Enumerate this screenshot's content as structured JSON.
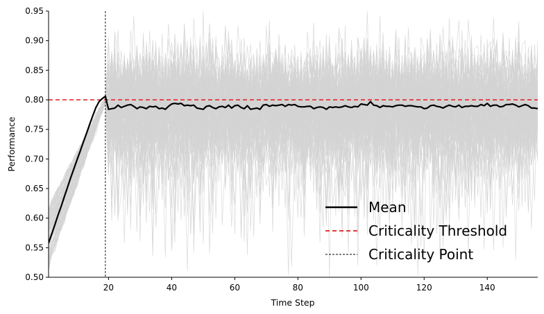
{
  "chart_data": {
    "type": "line",
    "title": "",
    "xlabel": "Time Step",
    "ylabel": "Performance",
    "xlim": [
      1,
      156
    ],
    "ylim": [
      0.5,
      0.95
    ],
    "xticks": [
      20,
      40,
      60,
      80,
      100,
      120,
      140
    ],
    "xtick_labels": [
      "20",
      "40",
      "60",
      "80",
      "100",
      "120",
      "140"
    ],
    "yticks": [
      0.5,
      0.55,
      0.6,
      0.65,
      0.7,
      0.75,
      0.8,
      0.85,
      0.9,
      0.95
    ],
    "ytick_labels": [
      "0.50",
      "0.55",
      "0.60",
      "0.65",
      "0.70",
      "0.75",
      "0.80",
      "0.85",
      "0.90",
      "0.95"
    ],
    "grid": false,
    "legend_position": "lower-right",
    "criticality_threshold": 0.8,
    "criticality_point": 19,
    "mean_series": {
      "name": "Mean",
      "color": "#000000",
      "x": [
        1,
        2,
        3,
        4,
        5,
        6,
        7,
        8,
        9,
        10,
        11,
        12,
        13,
        14,
        15,
        16,
        17,
        18,
        19,
        20,
        21,
        22,
        23,
        24,
        25,
        26,
        27,
        28,
        29,
        30,
        31,
        32,
        33,
        34,
        35,
        36,
        37,
        38,
        39,
        40,
        41,
        42,
        43,
        44,
        45,
        46,
        47,
        48,
        49,
        50,
        51,
        52,
        53,
        54,
        55,
        56,
        57,
        58,
        59,
        60,
        61,
        62,
        63,
        64,
        65,
        66,
        67,
        68,
        69,
        70,
        71,
        72,
        73,
        74,
        75,
        76,
        77,
        78,
        79,
        80,
        81,
        82,
        83,
        84,
        85,
        86,
        87,
        88,
        89,
        90,
        91,
        92,
        93,
        94,
        95,
        96,
        97,
        98,
        99,
        100,
        101,
        102,
        103,
        104,
        105,
        106,
        107,
        108,
        109,
        110,
        111,
        112,
        113,
        114,
        115,
        116,
        117,
        118,
        119,
        120,
        121,
        122,
        123,
        124,
        125,
        126,
        127,
        128,
        129,
        130,
        131,
        132,
        133,
        134,
        135,
        136,
        137,
        138,
        139,
        140,
        141,
        142,
        143,
        144,
        145,
        146,
        147,
        148,
        149,
        150,
        151,
        152,
        153,
        154,
        155,
        156
      ],
      "values": [
        0.558,
        0.573,
        0.589,
        0.605,
        0.62,
        0.636,
        0.652,
        0.668,
        0.683,
        0.698,
        0.713,
        0.728,
        0.743,
        0.758,
        0.773,
        0.787,
        0.797,
        0.802,
        0.806,
        0.784,
        0.785,
        0.786,
        0.791,
        0.787,
        0.789,
        0.791,
        0.792,
        0.789,
        0.785,
        0.788,
        0.787,
        0.785,
        0.789,
        0.788,
        0.789,
        0.785,
        0.786,
        0.784,
        0.789,
        0.793,
        0.794,
        0.793,
        0.794,
        0.79,
        0.791,
        0.79,
        0.791,
        0.786,
        0.785,
        0.784,
        0.789,
        0.79,
        0.787,
        0.785,
        0.788,
        0.789,
        0.787,
        0.791,
        0.786,
        0.79,
        0.791,
        0.787,
        0.785,
        0.79,
        0.784,
        0.785,
        0.786,
        0.784,
        0.791,
        0.792,
        0.789,
        0.791,
        0.79,
        0.791,
        0.792,
        0.789,
        0.792,
        0.791,
        0.792,
        0.789,
        0.788,
        0.788,
        0.789,
        0.789,
        0.785,
        0.787,
        0.788,
        0.787,
        0.784,
        0.788,
        0.787,
        0.788,
        0.787,
        0.788,
        0.79,
        0.788,
        0.787,
        0.789,
        0.788,
        0.793,
        0.792,
        0.791,
        0.797,
        0.791,
        0.79,
        0.787,
        0.79,
        0.789,
        0.789,
        0.788,
        0.79,
        0.791,
        0.791,
        0.789,
        0.79,
        0.79,
        0.789,
        0.788,
        0.788,
        0.785,
        0.786,
        0.79,
        0.791,
        0.789,
        0.788,
        0.786,
        0.789,
        0.791,
        0.789,
        0.788,
        0.791,
        0.787,
        0.789,
        0.789,
        0.79,
        0.789,
        0.789,
        0.792,
        0.79,
        0.794,
        0.789,
        0.791,
        0.791,
        0.788,
        0.789,
        0.792,
        0.792,
        0.793,
        0.791,
        0.788,
        0.79,
        0.792,
        0.79,
        0.786,
        0.786,
        0.785
      ]
    },
    "runs": {
      "count": 100,
      "color": "#d3d3d3",
      "description_values_source": "simulated individual runs around the mean"
    },
    "legend": [
      {
        "label": "Mean",
        "style": "solid",
        "color": "#000000"
      },
      {
        "label": "Criticality Threshold",
        "style": "dashed",
        "color": "#e41a1c"
      },
      {
        "label": "Criticality Point",
        "style": "dashed-thin",
        "color": "#000000"
      }
    ]
  }
}
